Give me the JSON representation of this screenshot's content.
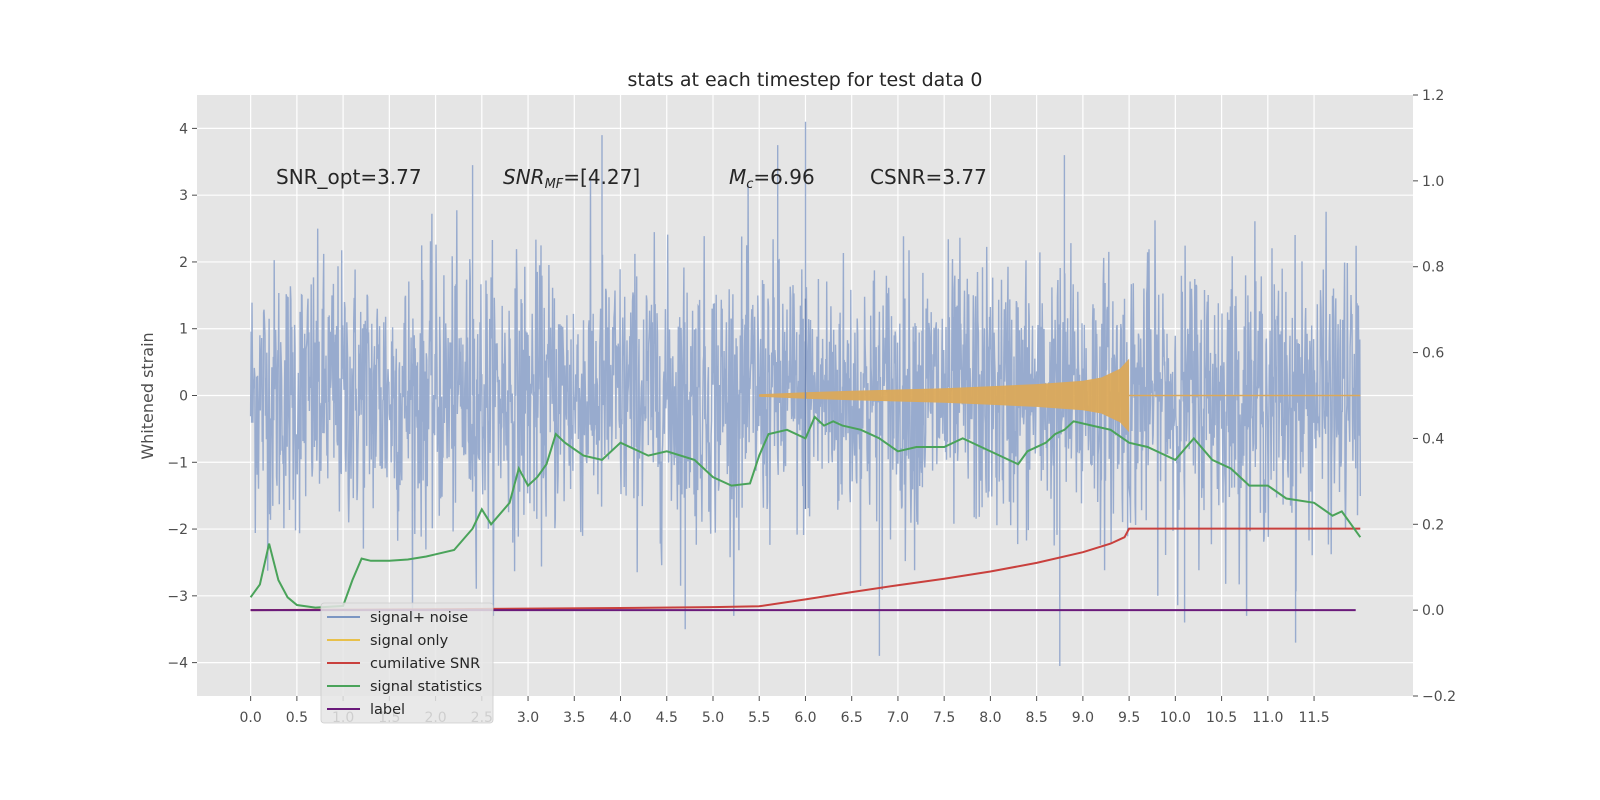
{
  "chart_data": {
    "type": "line",
    "title": "stats at each timestep for test data 0",
    "ylabel": "Whitened strain",
    "xlabel": "",
    "xlim": [
      -0.58,
      12.57
    ],
    "ylim": [
      -4.5,
      4.5
    ],
    "ylim_right": [
      -0.2,
      1.2
    ],
    "grid": true,
    "legend_position": "lower-left",
    "x_ticks": [
      "0.0",
      "0.5",
      "1.0",
      "1.5",
      "2.0",
      "2.5",
      "3.0",
      "3.5",
      "4.0",
      "4.5",
      "5.0",
      "5.5",
      "6.0",
      "6.5",
      "7.0",
      "7.5",
      "8.0",
      "8.5",
      "9.0",
      "9.5",
      "10.0",
      "10.5",
      "11.0",
      "11.5"
    ],
    "y_ticks": [
      4,
      3,
      2,
      1,
      0,
      -1,
      -2,
      -3,
      -4
    ],
    "y_ticks_right": [
      "1.2",
      "1.0",
      "0.8",
      "0.6",
      "0.4",
      "0.2",
      "0.0",
      "−0.2"
    ],
    "annotations": [
      {
        "text": "SNR_opt=3.77"
      },
      {
        "math": "SNR",
        "sub": "MF",
        "text": "=[4.27]"
      },
      {
        "math": "M",
        "sub": "c",
        "text": "=6.96"
      },
      {
        "text": "CSNR=3.77"
      }
    ],
    "legend": [
      {
        "label": "signal+ noise",
        "color": "#7b96c2"
      },
      {
        "label": "signal only",
        "color": "#e8c04a"
      },
      {
        "label": "cumilative SNR",
        "color": "#c9403d"
      },
      {
        "label": "signal statistics",
        "color": "#4aa35a"
      },
      {
        "label": "label",
        "color": "#6a1a7a"
      }
    ],
    "series": [
      {
        "name": "signal+ noise",
        "axis": "left",
        "color": "#93a8cc",
        "x_range": [
          0,
          12
        ],
        "noise_std": 1.0,
        "spikes": [
          [
            6.0,
            4.1
          ],
          [
            3.8,
            3.9
          ],
          [
            5.7,
            3.75
          ],
          [
            8.8,
            3.6
          ],
          [
            2.4,
            3.45
          ],
          [
            6.8,
            -3.9
          ],
          [
            8.75,
            -4.05
          ],
          [
            4.7,
            -3.5
          ],
          [
            11.3,
            -3.7
          ],
          [
            10.1,
            -3.4
          ]
        ]
      },
      {
        "name": "signal only",
        "axis": "left",
        "color": "#dba95a",
        "x": [
          5.5,
          6.0,
          6.5,
          7.0,
          7.5,
          8.0,
          8.5,
          9.0,
          9.2,
          9.4,
          9.5,
          9.5,
          12.0
        ],
        "amplitude": [
          0.02,
          0.05,
          0.07,
          0.09,
          0.11,
          0.14,
          0.17,
          0.22,
          0.27,
          0.4,
          0.55,
          0.0,
          0.0
        ]
      },
      {
        "name": "cumilative SNR",
        "axis": "right",
        "color": "#c9403d",
        "x": [
          0.0,
          2.0,
          4.0,
          5.0,
          5.5,
          6.0,
          6.5,
          7.0,
          7.5,
          8.0,
          8.5,
          9.0,
          9.3,
          9.45,
          9.5,
          12.0
        ],
        "values": [
          0.0,
          0.002,
          0.005,
          0.007,
          0.009,
          0.025,
          0.042,
          0.058,
          0.073,
          0.09,
          0.11,
          0.135,
          0.155,
          0.17,
          0.19,
          0.19
        ]
      },
      {
        "name": "signal statistics",
        "axis": "right",
        "color": "#4aa35a",
        "x": [
          0.0,
          0.1,
          0.2,
          0.3,
          0.4,
          0.5,
          0.7,
          1.0,
          1.1,
          1.2,
          1.3,
          1.5,
          1.7,
          1.9,
          2.0,
          2.2,
          2.4,
          2.5,
          2.6,
          2.8,
          2.9,
          3.0,
          3.1,
          3.2,
          3.3,
          3.4,
          3.6,
          3.8,
          4.0,
          4.3,
          4.5,
          4.8,
          5.0,
          5.2,
          5.4,
          5.5,
          5.6,
          5.8,
          6.0,
          6.1,
          6.2,
          6.3,
          6.4,
          6.6,
          6.8,
          7.0,
          7.2,
          7.5,
          7.7,
          7.9,
          8.1,
          8.3,
          8.4,
          8.6,
          8.7,
          8.8,
          8.9,
          9.1,
          9.3,
          9.5,
          9.7,
          9.9,
          10.0,
          10.2,
          10.4,
          10.6,
          10.8,
          11.0,
          11.2,
          11.5,
          11.7,
          11.8,
          12.0
        ],
        "values": [
          0.03,
          0.06,
          0.155,
          0.07,
          0.03,
          0.012,
          0.006,
          0.01,
          0.07,
          0.12,
          0.115,
          0.115,
          0.118,
          0.125,
          0.13,
          0.14,
          0.19,
          0.235,
          0.2,
          0.25,
          0.33,
          0.29,
          0.31,
          0.34,
          0.41,
          0.39,
          0.36,
          0.35,
          0.39,
          0.36,
          0.37,
          0.35,
          0.31,
          0.29,
          0.295,
          0.36,
          0.41,
          0.42,
          0.4,
          0.45,
          0.43,
          0.44,
          0.43,
          0.42,
          0.4,
          0.37,
          0.38,
          0.38,
          0.4,
          0.38,
          0.36,
          0.34,
          0.37,
          0.39,
          0.41,
          0.42,
          0.44,
          0.43,
          0.42,
          0.39,
          0.38,
          0.36,
          0.35,
          0.4,
          0.35,
          0.33,
          0.29,
          0.29,
          0.26,
          0.25,
          0.22,
          0.23,
          0.17
        ]
      },
      {
        "name": "label",
        "axis": "right",
        "color": "#6a1a7a",
        "x": [
          0.0,
          11.95
        ],
        "values": [
          0.0,
          0.0
        ]
      }
    ]
  }
}
